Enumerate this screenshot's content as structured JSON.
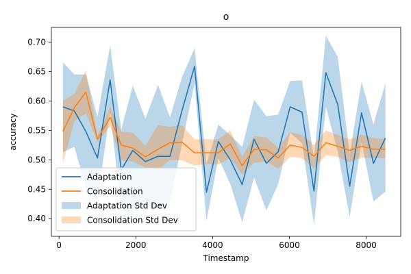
{
  "chart_data": {
    "type": "line",
    "title": "o",
    "xlabel": "Timestamp",
    "ylabel": "accuracy",
    "xlim": [
      -200,
      8900
    ],
    "ylim": [
      0.37,
      0.725
    ],
    "x_ticks": [
      0,
      2000,
      4000,
      6000,
      8000
    ],
    "y_ticks": [
      0.4,
      0.45,
      0.5,
      0.55,
      0.6,
      0.65,
      0.7
    ],
    "y_tick_labels": [
      "0.40",
      "0.45",
      "0.50",
      "0.55",
      "0.60",
      "0.65",
      "0.70"
    ],
    "x": [
      100,
      400,
      700,
      1000,
      1330,
      1620,
      1920,
      2250,
      2580,
      2890,
      3200,
      3530,
      3840,
      4150,
      4460,
      4770,
      5080,
      5400,
      5710,
      6020,
      6330,
      6640,
      6950,
      7260,
      7570,
      7880,
      8190,
      8500
    ],
    "series": [
      {
        "name": "Adaptation",
        "color": "#1f77b4",
        "values": [
          0.59,
          0.583,
          0.548,
          0.503,
          0.636,
          0.483,
          0.516,
          0.497,
          0.506,
          0.506,
          0.583,
          0.659,
          0.445,
          0.531,
          0.5,
          0.458,
          0.535,
          0.494,
          0.514,
          0.59,
          0.581,
          0.447,
          0.648,
          0.594,
          0.455,
          0.58,
          0.494,
          0.537
        ],
        "std_lower": [
          0.513,
          0.522,
          0.452,
          0.431,
          0.583,
          0.414,
          0.408,
          0.425,
          0.414,
          0.429,
          0.526,
          0.63,
          0.396,
          0.503,
          0.459,
          0.394,
          0.47,
          0.414,
          0.459,
          0.546,
          0.528,
          0.39,
          0.59,
          0.514,
          0.403,
          0.53,
          0.429,
          0.446
        ],
        "std_upper": [
          0.666,
          0.645,
          0.645,
          0.573,
          0.694,
          0.551,
          0.626,
          0.57,
          0.627,
          0.572,
          0.64,
          0.69,
          0.493,
          0.56,
          0.542,
          0.522,
          0.602,
          0.574,
          0.577,
          0.634,
          0.635,
          0.503,
          0.711,
          0.675,
          0.51,
          0.633,
          0.56,
          0.63
        ]
      },
      {
        "name": "Consolidation",
        "color": "#ff7f0e",
        "values": [
          0.548,
          0.589,
          0.615,
          0.535,
          0.572,
          0.525,
          0.52,
          0.505,
          0.518,
          0.529,
          0.53,
          0.512,
          0.512,
          0.512,
          0.527,
          0.49,
          0.518,
          0.517,
          0.503,
          0.525,
          0.521,
          0.506,
          0.529,
          0.523,
          0.516,
          0.523,
          0.518,
          0.518
        ],
        "std_lower": [
          0.494,
          0.566,
          0.579,
          0.53,
          0.557,
          0.499,
          0.497,
          0.487,
          0.483,
          0.5,
          0.499,
          0.49,
          0.493,
          0.492,
          0.503,
          0.475,
          0.495,
          0.497,
          0.485,
          0.505,
          0.503,
          0.485,
          0.508,
          0.505,
          0.496,
          0.504,
          0.503,
          0.503
        ],
        "std_upper": [
          0.6,
          0.612,
          0.652,
          0.541,
          0.59,
          0.548,
          0.546,
          0.524,
          0.559,
          0.556,
          0.559,
          0.535,
          0.535,
          0.535,
          0.55,
          0.505,
          0.54,
          0.538,
          0.52,
          0.547,
          0.542,
          0.525,
          0.55,
          0.542,
          0.535,
          0.543,
          0.537,
          0.535
        ]
      }
    ],
    "legend": {
      "placement": "lower-left",
      "entries": [
        {
          "label": "Adaptation",
          "kind": "line",
          "color": "#1f77b4"
        },
        {
          "label": "Consolidation",
          "kind": "line",
          "color": "#ff7f0e"
        },
        {
          "label": "Adaptation Std Dev",
          "kind": "band",
          "color": "#1f77b4"
        },
        {
          "label": "Consolidation Std Dev",
          "kind": "band",
          "color": "#ff7f0e"
        }
      ]
    },
    "grid": false
  }
}
